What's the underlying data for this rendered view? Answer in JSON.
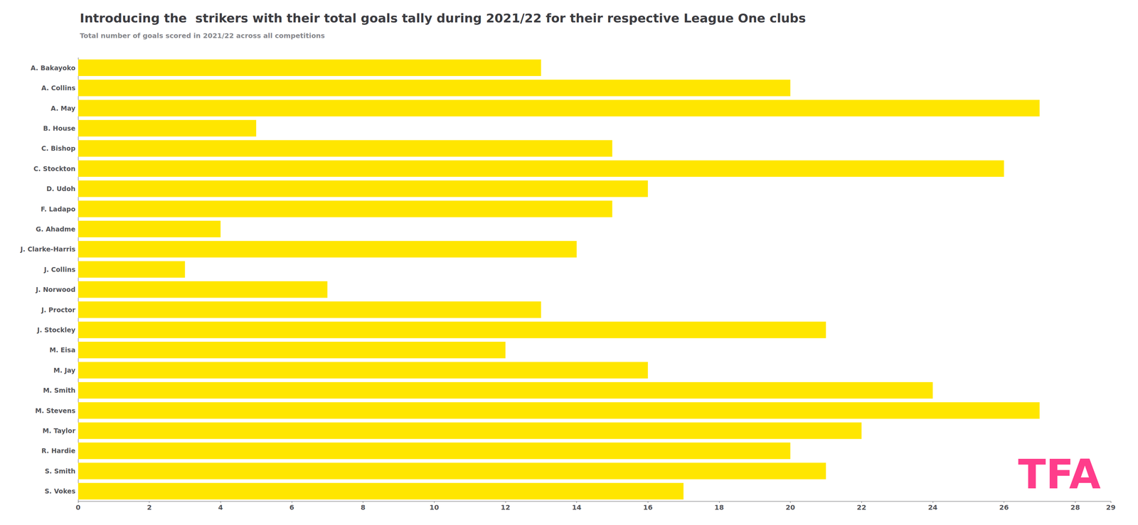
{
  "chart_data": {
    "type": "bar",
    "orientation": "horizontal",
    "title": "Introducing the  strikers with their total goals tally during 2021/22 for their respective League One clubs",
    "subtitle": "Total number of goals scored in 2021/22 across all competitions",
    "categories": [
      "A. Bakayoko",
      "A. Collins",
      "A. May",
      "B. House",
      "C. Bishop",
      "C. Stockton",
      "D. Udoh",
      "F. Ladapo",
      "G. Ahadme",
      "J. Clarke-Harris",
      "J. Collins",
      "J. Norwood",
      "J. Proctor",
      "J. Stockley",
      "M. Eisa",
      "M. Jay",
      "M. Smith",
      "M. Stevens",
      "M. Taylor",
      "R. Hardie",
      "S. Smith",
      "S. Vokes"
    ],
    "values": [
      13,
      20,
      27,
      5,
      15,
      26,
      16,
      15,
      4,
      14,
      3,
      7,
      13,
      21,
      12,
      16,
      24,
      27,
      22,
      20,
      21,
      17
    ],
    "color": "#FFE600",
    "xlim": [
      0,
      29
    ],
    "xticks": [
      0,
      2,
      4,
      6,
      8,
      10,
      12,
      14,
      16,
      18,
      20,
      22,
      24,
      26,
      28
    ],
    "grid": false,
    "annotations": [
      {
        "text": "TFA",
        "color": "#FF3D8B"
      }
    ]
  }
}
